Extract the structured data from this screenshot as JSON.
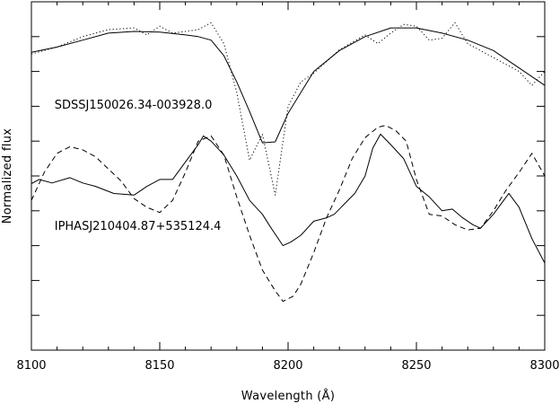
{
  "chart_data": {
    "type": "line",
    "xlabel": "Wavelength (Å)",
    "ylabel": "Normalized flux",
    "xlim": [
      8100,
      8300
    ],
    "ylim": [
      0,
      1
    ],
    "xticks": [
      8100,
      8150,
      8200,
      8250,
      8300
    ],
    "x_minor_step": 10,
    "y_major_ticks": [
      0.1,
      0.2,
      0.3,
      0.4,
      0.5,
      0.6,
      0.7,
      0.8,
      0.9
    ],
    "y_tick_labels_shown": false,
    "grid": false,
    "legend": "none",
    "annotations": [
      {
        "text": "SDSSJ150026.34-003928.0",
        "x": 8109,
        "y": 0.693
      },
      {
        "text": "IPHASJ210404.87+535124.4",
        "x": 8109,
        "y": 0.346
      }
    ],
    "series": [
      {
        "style": "solid",
        "x": [
          8100,
          8110,
          8120,
          8130,
          8140,
          8150,
          8160,
          8165,
          8170,
          8175,
          8180,
          8185,
          8190,
          8195,
          8200,
          8210,
          8220,
          8230,
          8240,
          8250,
          8260,
          8270,
          8280,
          8290,
          8300
        ],
        "y": [
          0.855,
          0.87,
          0.89,
          0.91,
          0.915,
          0.913,
          0.905,
          0.9,
          0.89,
          0.845,
          0.77,
          0.685,
          0.595,
          0.598,
          0.68,
          0.8,
          0.86,
          0.9,
          0.925,
          0.925,
          0.91,
          0.89,
          0.86,
          0.81,
          0.76
        ]
      },
      {
        "style": "dotted",
        "x": [
          8100,
          8110,
          8120,
          8130,
          8140,
          8145,
          8150,
          8155,
          8160,
          8165,
          8170,
          8175,
          8180,
          8185,
          8190,
          8195,
          8200,
          8205,
          8210,
          8220,
          8230,
          8235,
          8240,
          8245,
          8250,
          8255,
          8260,
          8265,
          8270,
          8280,
          8290,
          8295,
          8300
        ],
        "y": [
          0.85,
          0.87,
          0.9,
          0.92,
          0.925,
          0.905,
          0.93,
          0.91,
          0.915,
          0.92,
          0.94,
          0.88,
          0.74,
          0.545,
          0.62,
          0.445,
          0.7,
          0.77,
          0.795,
          0.862,
          0.905,
          0.88,
          0.91,
          0.935,
          0.93,
          0.89,
          0.895,
          0.94,
          0.88,
          0.84,
          0.8,
          0.76,
          0.8
        ]
      },
      {
        "style": "solid",
        "x": [
          8100,
          8103,
          8108,
          8115,
          8120,
          8125,
          8132,
          8140,
          8145,
          8150,
          8155,
          8158,
          8162,
          8165,
          8167,
          8170,
          8175,
          8180,
          8185,
          8190,
          8193,
          8198,
          8201,
          8205,
          8210,
          8215,
          8218,
          8222,
          8226,
          8230,
          8233,
          8236,
          8240,
          8245,
          8250,
          8255,
          8260,
          8264,
          8268,
          8272,
          8275,
          8280,
          8286,
          8290,
          8295,
          8300
        ],
        "y": [
          0.478,
          0.49,
          0.48,
          0.495,
          0.48,
          0.47,
          0.45,
          0.445,
          0.47,
          0.49,
          0.49,
          0.52,
          0.56,
          0.59,
          0.615,
          0.6,
          0.56,
          0.5,
          0.43,
          0.39,
          0.355,
          0.3,
          0.31,
          0.33,
          0.37,
          0.38,
          0.39,
          0.42,
          0.45,
          0.5,
          0.58,
          0.62,
          0.59,
          0.55,
          0.47,
          0.44,
          0.4,
          0.405,
          0.38,
          0.36,
          0.35,
          0.39,
          0.45,
          0.41,
          0.32,
          0.25
        ]
      },
      {
        "style": "dashed",
        "x": [
          8100,
          8105,
          8110,
          8115,
          8120,
          8125,
          8130,
          8135,
          8140,
          8145,
          8150,
          8155,
          8160,
          8165,
          8170,
          8175,
          8180,
          8185,
          8190,
          8195,
          8198,
          8202,
          8205,
          8210,
          8215,
          8220,
          8225,
          8230,
          8235,
          8238,
          8242,
          8246,
          8250,
          8255,
          8260,
          8265,
          8270,
          8275,
          8280,
          8285,
          8290,
          8295,
          8300
        ],
        "y": [
          0.43,
          0.51,
          0.565,
          0.584,
          0.575,
          0.555,
          0.52,
          0.485,
          0.435,
          0.41,
          0.395,
          0.43,
          0.51,
          0.6,
          0.615,
          0.56,
          0.44,
          0.33,
          0.23,
          0.17,
          0.14,
          0.155,
          0.19,
          0.28,
          0.38,
          0.46,
          0.55,
          0.61,
          0.64,
          0.645,
          0.63,
          0.6,
          0.49,
          0.39,
          0.385,
          0.36,
          0.345,
          0.35,
          0.4,
          0.46,
          0.51,
          0.565,
          0.5
        ]
      }
    ]
  }
}
